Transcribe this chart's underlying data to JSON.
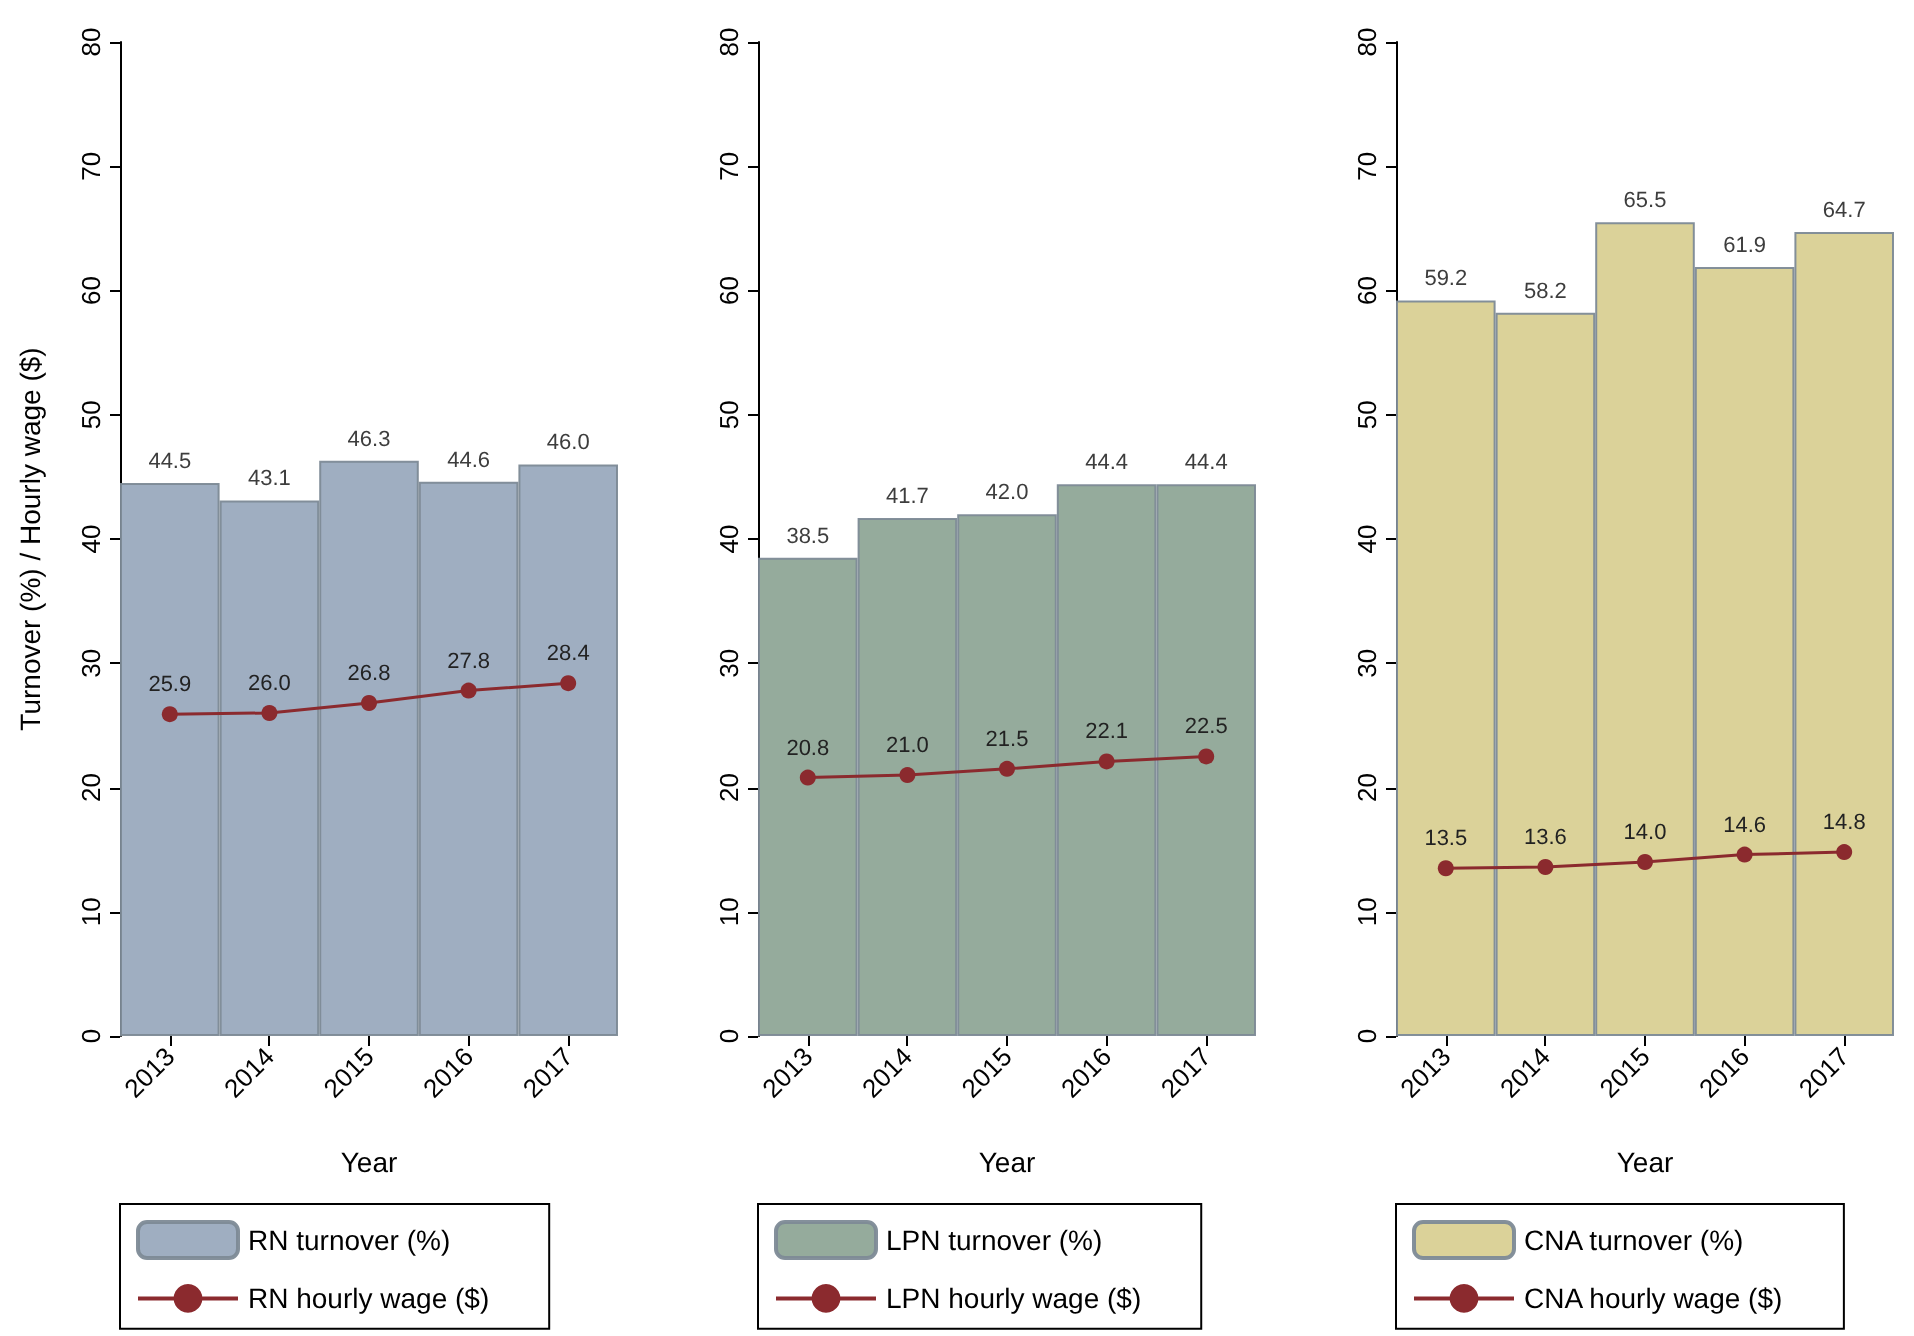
{
  "chart_data": [
    {
      "type": "bar",
      "xlabel": "Year",
      "ylabel": "Turnover (%) / Hourly wage ($)",
      "categories": [
        "2013",
        "2014",
        "2015",
        "2016",
        "2017"
      ],
      "ylim": [
        0,
        80
      ],
      "yticks": [
        0,
        10,
        20,
        30,
        40,
        50,
        60,
        70,
        80
      ],
      "grid": false,
      "legend": "bottom",
      "marker": "circle",
      "series": [
        {
          "name": "RN turnover (%)",
          "color": "#9aaabe",
          "values": [
            44.5,
            43.1,
            46.3,
            44.6,
            46.0
          ],
          "value_labels": [
            "44.5",
            "43.1",
            "46.3",
            "44.6",
            "46.0"
          ]
        },
        {
          "name": "RN hourly wage ($)",
          "type": "line",
          "color": "#8b2a2e",
          "values": [
            25.9,
            26.0,
            26.8,
            27.8,
            28.4
          ],
          "value_labels": [
            "25.9",
            "26.0",
            "26.8",
            "27.8",
            "28.4"
          ]
        }
      ]
    },
    {
      "type": "bar",
      "xlabel": "Year",
      "categories": [
        "2013",
        "2014",
        "2015",
        "2016",
        "2017"
      ],
      "ylim": [
        0,
        80
      ],
      "yticks": [
        0,
        10,
        20,
        30,
        40,
        50,
        60,
        70,
        80
      ],
      "grid": false,
      "legend": "bottom",
      "marker": "circle",
      "series": [
        {
          "name": "LPN turnover (%)",
          "color": "#8fa797",
          "values": [
            38.5,
            41.7,
            42.0,
            44.4,
            44.4
          ],
          "value_labels": [
            "38.5",
            "41.7",
            "42.0",
            "44.4",
            "44.4"
          ]
        },
        {
          "name": "LPN hourly wage ($)",
          "type": "line",
          "color": "#8b2a2e",
          "values": [
            20.8,
            21.0,
            21.5,
            22.1,
            22.5
          ],
          "value_labels": [
            "20.8",
            "21.0",
            "21.5",
            "22.1",
            "22.5"
          ]
        }
      ]
    },
    {
      "type": "bar",
      "xlabel": "Year",
      "categories": [
        "2013",
        "2014",
        "2015",
        "2016",
        "2017"
      ],
      "ylim": [
        0,
        80
      ],
      "yticks": [
        0,
        10,
        20,
        30,
        40,
        50,
        60,
        70,
        80
      ],
      "grid": false,
      "legend": "bottom",
      "marker": "circle",
      "series": [
        {
          "name": "CNA turnover (%)",
          "color": "#d9d094",
          "values": [
            59.2,
            58.2,
            65.5,
            61.9,
            64.7
          ],
          "value_labels": [
            "59.2",
            "58.2",
            "65.5",
            "61.9",
            "64.7"
          ]
        },
        {
          "name": "CNA hourly wage ($)",
          "type": "line",
          "color": "#8b2a2e",
          "values": [
            13.5,
            13.6,
            14.0,
            14.6,
            14.8
          ],
          "value_labels": [
            "13.5",
            "13.6",
            "14.0",
            "14.6",
            "14.8"
          ]
        }
      ]
    }
  ]
}
